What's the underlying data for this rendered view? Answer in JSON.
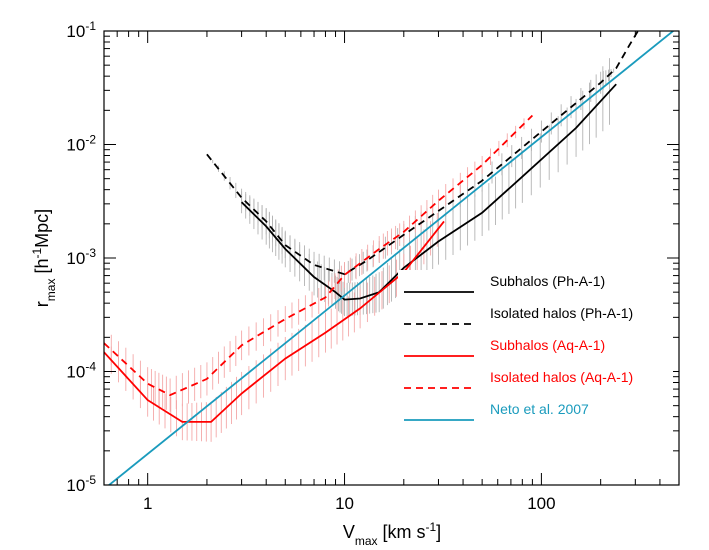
{
  "chart_data": {
    "type": "line",
    "title": "",
    "xlabel": {
      "main": "V",
      "sub": "max",
      "rest": " [km s",
      "sup": "-1",
      "close": "]"
    },
    "ylabel": {
      "main": "r",
      "sub": "max",
      "rest": " [h",
      "sup": "-1",
      "close": "Mpc]"
    },
    "xscale": "log",
    "yscale": "log",
    "xlim": [
      0.6,
      500
    ],
    "ylim": [
      1e-05,
      0.1
    ],
    "grid": false,
    "legend_position": "lower-right",
    "x_ticks": [
      {
        "value": 1,
        "label": "1"
      },
      {
        "value": 10,
        "label": "10"
      },
      {
        "value": 100,
        "label": "100"
      }
    ],
    "y_ticks": [
      {
        "value": 1e-05,
        "base": "10",
        "exp": "-5"
      },
      {
        "value": 0.0001,
        "base": "10",
        "exp": "-4"
      },
      {
        "value": 0.001,
        "base": "10",
        "exp": "-3"
      },
      {
        "value": 0.01,
        "base": "10",
        "exp": "-2"
      },
      {
        "value": 0.1,
        "base": "10",
        "exp": "-1"
      }
    ],
    "series": [
      {
        "name": "Subhalos (Ph-A-1)",
        "color": "#000000",
        "dash": "solid",
        "x": [
          3,
          4,
          5,
          7,
          9,
          10,
          12,
          15,
          20,
          30,
          50,
          80,
          150,
          240
        ],
        "y": [
          0.0031,
          0.0019,
          0.0012,
          0.00068,
          0.0005,
          0.00043,
          0.00044,
          0.0005,
          0.00082,
          0.0014,
          0.0025,
          0.0052,
          0.014,
          0.034
        ],
        "error_band": [
          1.25,
          1.45,
          1.45,
          1.45,
          1.4,
          1.4,
          1.4,
          1.5,
          1.6,
          1.6,
          1.6,
          1.7,
          1.8,
          2.0
        ]
      },
      {
        "name": "Isolated halos (Ph-A-1)",
        "color": "#000000",
        "dash": "dashed",
        "x": [
          2,
          3,
          4,
          5,
          7,
          10,
          13,
          20,
          30,
          50,
          100,
          200,
          240,
          280,
          320
        ],
        "y": [
          0.0082,
          0.0034,
          0.0021,
          0.0013,
          0.00087,
          0.00072,
          0.00095,
          0.0016,
          0.0026,
          0.0048,
          0.013,
          0.035,
          0.047,
          0.075,
          0.11
        ],
        "error_band": [
          1.0,
          1.2,
          1.3,
          1.3,
          1.3,
          1.25,
          1.25,
          1.25,
          1.25,
          1.25,
          1.25,
          1.25,
          1.0,
          1.0,
          1.0
        ]
      },
      {
        "name": "Subhalos (Aq-A-1)",
        "color": "#ff0000",
        "dash": "solid",
        "x": [
          0.6,
          1,
          1.5,
          2.1,
          3,
          5,
          8,
          12,
          20,
          32
        ],
        "y": [
          0.000148,
          5.6e-05,
          3.6e-05,
          3.6e-05,
          6.4e-05,
          0.00013,
          0.00022,
          0.00036,
          0.00075,
          0.0021
        ],
        "error_band": [
          1.3,
          1.4,
          1.45,
          1.5,
          1.55,
          1.55,
          1.5,
          1.5,
          1.45,
          1.4
        ]
      },
      {
        "name": "Isolated halos (Aq-A-1)",
        "color": "#ff0000",
        "dash": "dashed",
        "x": [
          0.6,
          1,
          1.3,
          2,
          3,
          5,
          8,
          10,
          15,
          20,
          30,
          50,
          90
        ],
        "y": [
          0.000178,
          7.8e-05,
          6.2e-05,
          8.6e-05,
          0.00017,
          0.00029,
          0.00045,
          0.00071,
          0.0012,
          0.0017,
          0.0032,
          0.0066,
          0.018
        ],
        "error_band": [
          1.35,
          1.4,
          1.4,
          1.4,
          1.35,
          1.3,
          1.3,
          1.3,
          1.3,
          1.25,
          1.25,
          1.2,
          1.1
        ]
      },
      {
        "name": "Neto et al. 2007",
        "color": "#1a9bbd",
        "dash": "solid",
        "x": [
          0.6,
          500
        ],
        "y": [
          9.2e-06,
          0.11
        ]
      }
    ]
  }
}
